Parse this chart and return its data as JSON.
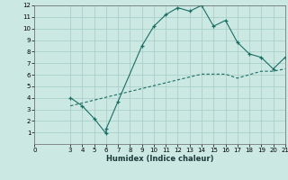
{
  "xlabel": "Humidex (Indice chaleur)",
  "bg_color": "#cce8e3",
  "grid_color": "#aacfc9",
  "line_color": "#1a6e64",
  "xlim": [
    0,
    21
  ],
  "ylim": [
    0,
    12
  ],
  "xticks": [
    0,
    3,
    4,
    5,
    6,
    7,
    8,
    9,
    10,
    11,
    12,
    13,
    14,
    15,
    16,
    17,
    18,
    19,
    20,
    21
  ],
  "yticks": [
    1,
    2,
    3,
    4,
    5,
    6,
    7,
    8,
    9,
    10,
    11,
    12
  ],
  "line1_x": [
    3,
    4,
    5,
    6,
    6,
    7,
    9,
    10,
    11,
    12,
    13,
    14,
    15,
    16,
    17,
    18,
    19,
    20,
    21
  ],
  "line1_y": [
    4.0,
    3.3,
    2.2,
    0.9,
    1.3,
    3.7,
    8.5,
    10.2,
    11.2,
    11.8,
    11.5,
    12.0,
    10.2,
    10.7,
    8.8,
    7.8,
    7.5,
    6.5,
    7.5
  ],
  "line2_x": [
    3,
    4,
    5,
    6,
    7,
    8,
    9,
    10,
    11,
    12,
    13,
    14,
    15,
    16,
    17,
    18,
    19,
    20,
    21
  ],
  "line2_y": [
    3.3,
    3.55,
    3.8,
    4.05,
    4.3,
    4.55,
    4.8,
    5.05,
    5.3,
    5.55,
    5.8,
    6.05,
    6.05,
    6.05,
    5.7,
    6.0,
    6.3,
    6.3,
    6.5
  ]
}
